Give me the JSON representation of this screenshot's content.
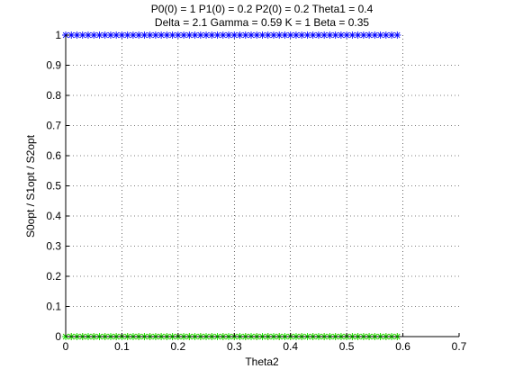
{
  "chart_data": {
    "type": "line",
    "title": [
      "P0(0) = 1 P1(0) = 0.2 P2(0) = 0.2 Theta1 = 0.4",
      "Delta = 2.1 Gamma = 0.59 K = 1 Beta = 0.35"
    ],
    "xlabel": "Theta2",
    "ylabel": "S0opt / S1opt / S2opt",
    "xlim": [
      0,
      0.7
    ],
    "ylim": [
      0,
      1
    ],
    "xticks": [
      "0",
      "0.1",
      "0.2",
      "0.3",
      "0.4",
      "0.5",
      "0.6",
      "0.7"
    ],
    "yticks": [
      "0",
      "0.1",
      "0.2",
      "0.3",
      "0.4",
      "0.5",
      "0.6",
      "0.7",
      "0.8",
      "0.9",
      "1"
    ],
    "grid": true,
    "marker": "asterisk",
    "x_range": [
      0,
      0.59
    ],
    "x_step": 0.01,
    "series": [
      {
        "color": "#0000ff",
        "value": 1
      },
      {
        "color": "#ff0000",
        "value": 0
      },
      {
        "color": "#00ff00",
        "value": 0
      }
    ]
  }
}
